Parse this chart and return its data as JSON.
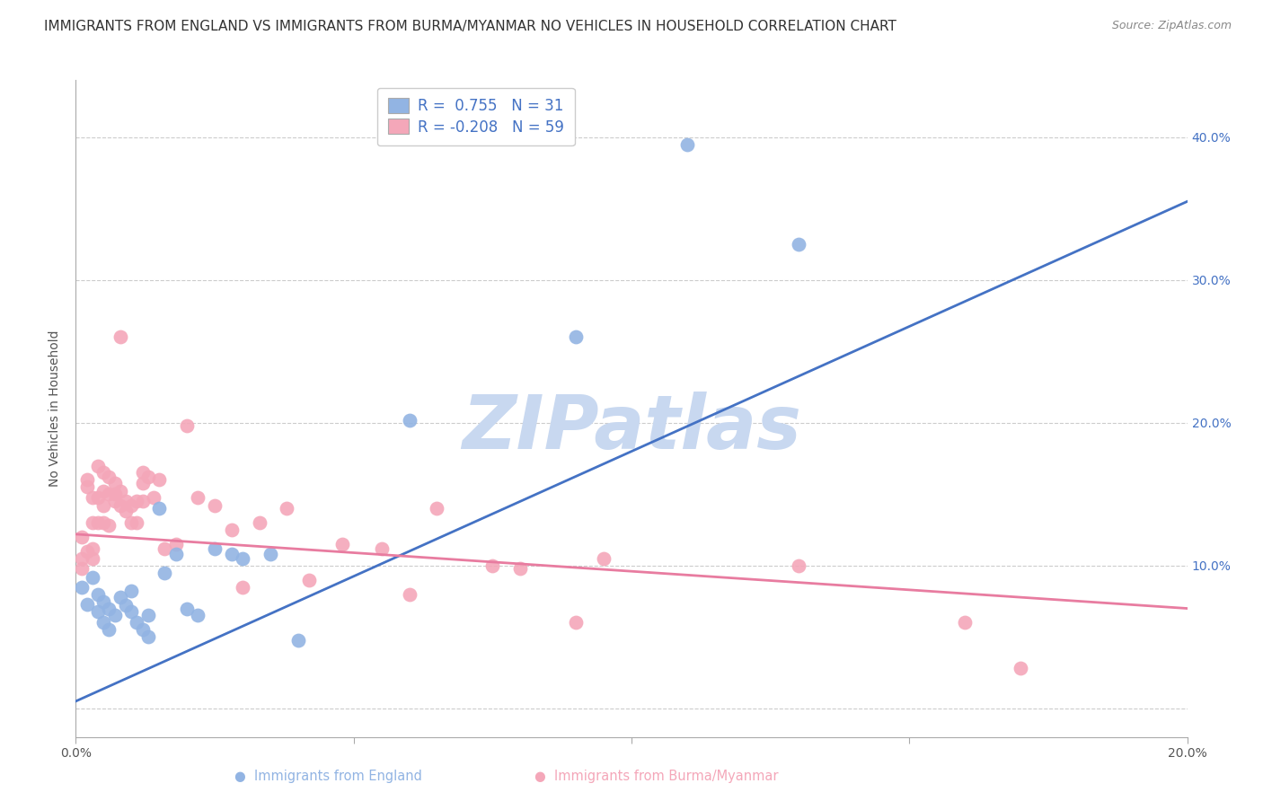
{
  "title": "IMMIGRANTS FROM ENGLAND VS IMMIGRANTS FROM BURMA/MYANMAR NO VEHICLES IN HOUSEHOLD CORRELATION CHART",
  "source": "Source: ZipAtlas.com",
  "ylabel": "No Vehicles in Household",
  "xlim": [
    0.0,
    0.2
  ],
  "ylim": [
    -0.02,
    0.44
  ],
  "yticks": [
    0.0,
    0.1,
    0.2,
    0.3,
    0.4
  ],
  "ytick_labels": [
    "",
    "10.0%",
    "20.0%",
    "30.0%",
    "40.0%"
  ],
  "xticks": [
    0.0,
    0.05,
    0.1,
    0.15,
    0.2
  ],
  "england_R": 0.755,
  "england_N": 31,
  "burma_R": -0.208,
  "burma_N": 59,
  "england_color": "#92B4E3",
  "burma_color": "#F4A7B9",
  "england_line_color": "#4472C4",
  "burma_line_color": "#E87CA0",
  "watermark": "ZIPatlas",
  "watermark_color": "#C8D8F0",
  "eng_line_x0": 0.0,
  "eng_line_y0": 0.005,
  "eng_line_x1": 0.2,
  "eng_line_y1": 0.355,
  "bur_line_x0": 0.0,
  "bur_line_y0": 0.122,
  "bur_line_x1": 0.2,
  "bur_line_y1": 0.07,
  "england_scatter": [
    [
      0.001,
      0.085
    ],
    [
      0.002,
      0.073
    ],
    [
      0.003,
      0.092
    ],
    [
      0.004,
      0.08
    ],
    [
      0.004,
      0.068
    ],
    [
      0.005,
      0.075
    ],
    [
      0.005,
      0.06
    ],
    [
      0.006,
      0.07
    ],
    [
      0.006,
      0.055
    ],
    [
      0.007,
      0.065
    ],
    [
      0.008,
      0.078
    ],
    [
      0.009,
      0.072
    ],
    [
      0.01,
      0.082
    ],
    [
      0.01,
      0.068
    ],
    [
      0.011,
      0.06
    ],
    [
      0.012,
      0.055
    ],
    [
      0.013,
      0.05
    ],
    [
      0.013,
      0.065
    ],
    [
      0.015,
      0.14
    ],
    [
      0.016,
      0.095
    ],
    [
      0.018,
      0.108
    ],
    [
      0.02,
      0.07
    ],
    [
      0.022,
      0.065
    ],
    [
      0.025,
      0.112
    ],
    [
      0.028,
      0.108
    ],
    [
      0.03,
      0.105
    ],
    [
      0.035,
      0.108
    ],
    [
      0.04,
      0.048
    ],
    [
      0.06,
      0.202
    ],
    [
      0.09,
      0.26
    ],
    [
      0.13,
      0.325
    ]
  ],
  "england_outlier": [
    0.11,
    0.395
  ],
  "burma_scatter": [
    [
      0.001,
      0.098
    ],
    [
      0.001,
      0.12
    ],
    [
      0.001,
      0.105
    ],
    [
      0.002,
      0.16
    ],
    [
      0.002,
      0.155
    ],
    [
      0.002,
      0.11
    ],
    [
      0.003,
      0.148
    ],
    [
      0.003,
      0.13
    ],
    [
      0.003,
      0.112
    ],
    [
      0.003,
      0.105
    ],
    [
      0.004,
      0.17
    ],
    [
      0.004,
      0.148
    ],
    [
      0.004,
      0.13
    ],
    [
      0.005,
      0.165
    ],
    [
      0.005,
      0.152
    ],
    [
      0.005,
      0.142
    ],
    [
      0.005,
      0.13
    ],
    [
      0.006,
      0.162
    ],
    [
      0.006,
      0.15
    ],
    [
      0.006,
      0.128
    ],
    [
      0.007,
      0.158
    ],
    [
      0.007,
      0.15
    ],
    [
      0.007,
      0.145
    ],
    [
      0.008,
      0.26
    ],
    [
      0.008,
      0.152
    ],
    [
      0.008,
      0.142
    ],
    [
      0.009,
      0.145
    ],
    [
      0.009,
      0.138
    ],
    [
      0.01,
      0.142
    ],
    [
      0.01,
      0.13
    ],
    [
      0.011,
      0.145
    ],
    [
      0.011,
      0.13
    ],
    [
      0.012,
      0.165
    ],
    [
      0.012,
      0.158
    ],
    [
      0.012,
      0.145
    ],
    [
      0.013,
      0.162
    ],
    [
      0.014,
      0.148
    ],
    [
      0.015,
      0.16
    ],
    [
      0.016,
      0.112
    ],
    [
      0.018,
      0.115
    ],
    [
      0.02,
      0.198
    ],
    [
      0.022,
      0.148
    ],
    [
      0.025,
      0.142
    ],
    [
      0.028,
      0.125
    ],
    [
      0.03,
      0.085
    ],
    [
      0.033,
      0.13
    ],
    [
      0.038,
      0.14
    ],
    [
      0.042,
      0.09
    ],
    [
      0.048,
      0.115
    ],
    [
      0.055,
      0.112
    ],
    [
      0.06,
      0.08
    ],
    [
      0.065,
      0.14
    ],
    [
      0.075,
      0.1
    ],
    [
      0.08,
      0.098
    ],
    [
      0.09,
      0.06
    ],
    [
      0.095,
      0.105
    ],
    [
      0.13,
      0.1
    ],
    [
      0.16,
      0.06
    ],
    [
      0.17,
      0.028
    ]
  ],
  "background_color": "#FFFFFF",
  "grid_color": "#CCCCCC",
  "title_fontsize": 11,
  "axis_label_fontsize": 10,
  "tick_fontsize": 10,
  "legend_fontsize": 12
}
